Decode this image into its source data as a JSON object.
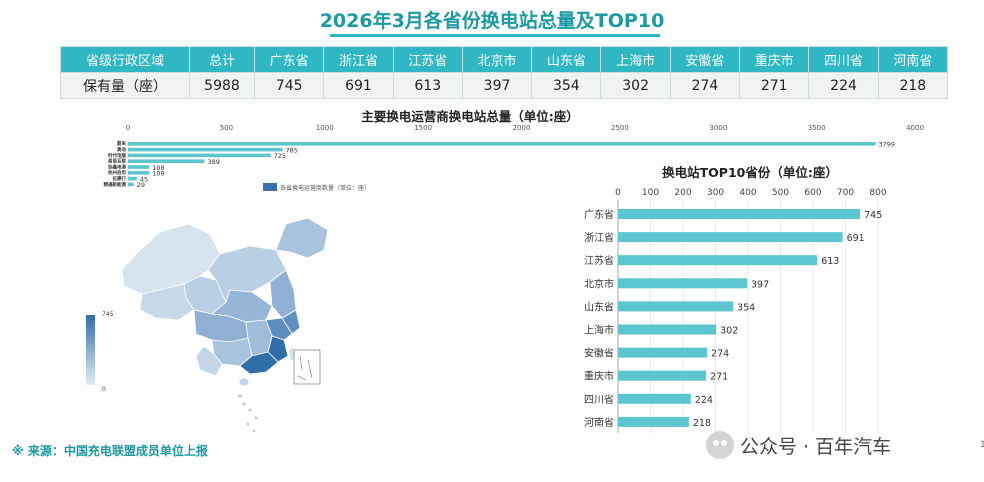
{
  "page": {
    "title": "2026年3月各省份换电站总量及TOP10",
    "source_note": "※  来源：中国充电联盟成员单位上报",
    "watermark": "公众号 · 百年汽车",
    "page_number": "1"
  },
  "summary_table": {
    "header": [
      "省级行政区域",
      "总计",
      "广东省",
      "浙江省",
      "江苏省",
      "北京市",
      "山东省",
      "上海市",
      "安徽省",
      "重庆市",
      "四川省",
      "河南省"
    ],
    "row": [
      "保有量（座）",
      "5988",
      "745",
      "691",
      "613",
      "397",
      "354",
      "302",
      "274",
      "271",
      "224",
      "218"
    ]
  },
  "chart_data": [
    {
      "type": "bar",
      "orientation": "horizontal",
      "title": "主要换电运营商换电站总量（单位:座）",
      "categories": [
        "蔚来",
        "奥动",
        "时代电服",
        "易易互联",
        "协鑫电港",
        "杭州伯坦",
        "伍康行",
        "精通新能源"
      ],
      "values": [
        3799,
        785,
        725,
        389,
        108,
        108,
        45,
        29
      ],
      "series": [
        {
          "name": "各省换电运营商数量（单位：座）",
          "values": [
            3799,
            785,
            725,
            389,
            108,
            108,
            45,
            29
          ]
        }
      ],
      "x_ticks": [
        0,
        500,
        1000,
        1500,
        2000,
        2500,
        3000,
        3500,
        4000
      ],
      "xlim": [
        0,
        4000
      ],
      "axis_position": "top",
      "legend": "bottom-center",
      "color": "#5cc6d0"
    },
    {
      "type": "bar",
      "orientation": "horizontal",
      "title": "换电站TOP10省份（单位:座）",
      "categories": [
        "广东省",
        "浙江省",
        "江苏省",
        "北京市",
        "山东省",
        "上海市",
        "安徽省",
        "重庆市",
        "四川省",
        "河南省"
      ],
      "values": [
        745,
        691,
        613,
        397,
        354,
        302,
        274,
        271,
        224,
        218
      ],
      "x_ticks": [
        0,
        100,
        200,
        300,
        400,
        500,
        600,
        700,
        800
      ],
      "xlim": [
        0,
        800
      ],
      "axis_position": "top",
      "grid": true,
      "color": "#5cc6d0"
    },
    {
      "type": "map",
      "legend_max": "745",
      "legend_min": "0",
      "colors": [
        "#e3edf6",
        "#2f6ea8"
      ]
    }
  ]
}
